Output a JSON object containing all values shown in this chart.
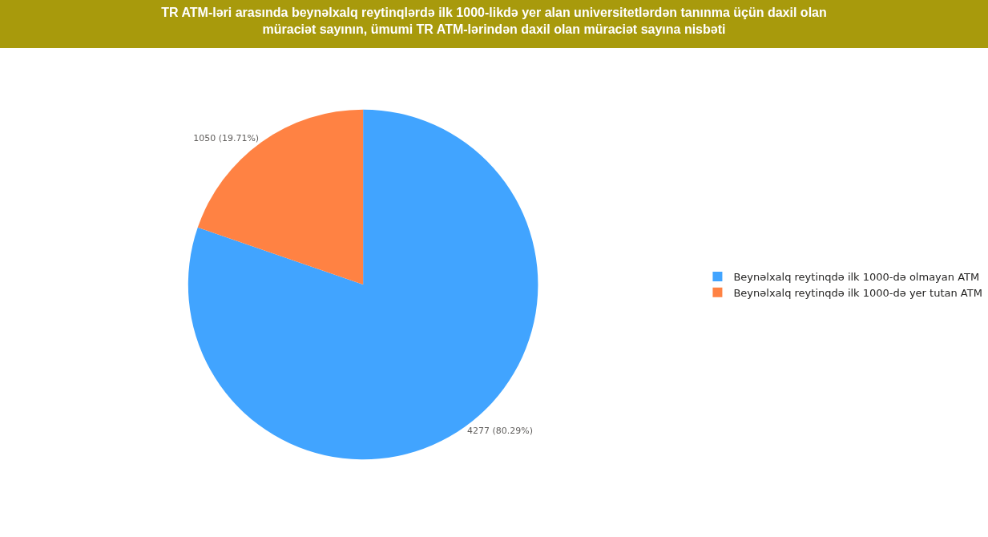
{
  "chart_data": {
    "type": "pie",
    "title": "TR ATM-ləri arasında beynəlxalq reytinqlərdə ilk 1000-likdə yer alan universitetlərdən tanınma üçün daxil olan müraciət sayının, ümumi TR ATM-lərindən daxil olan müraciət sayına nisbəti",
    "categories": [
      "Beynəlxalq reytinqdə ilk 1000-də olmayan ATM",
      "Beynəlxalq reytinqdə ilk 1000-də yer tutan ATM"
    ],
    "values": [
      4277,
      1050
    ],
    "colors": [
      "#41a4ff",
      "#ff8243"
    ],
    "value_labels": [
      "4277 (80.29%)",
      "1050 (19.71%)"
    ],
    "legend": "right"
  }
}
